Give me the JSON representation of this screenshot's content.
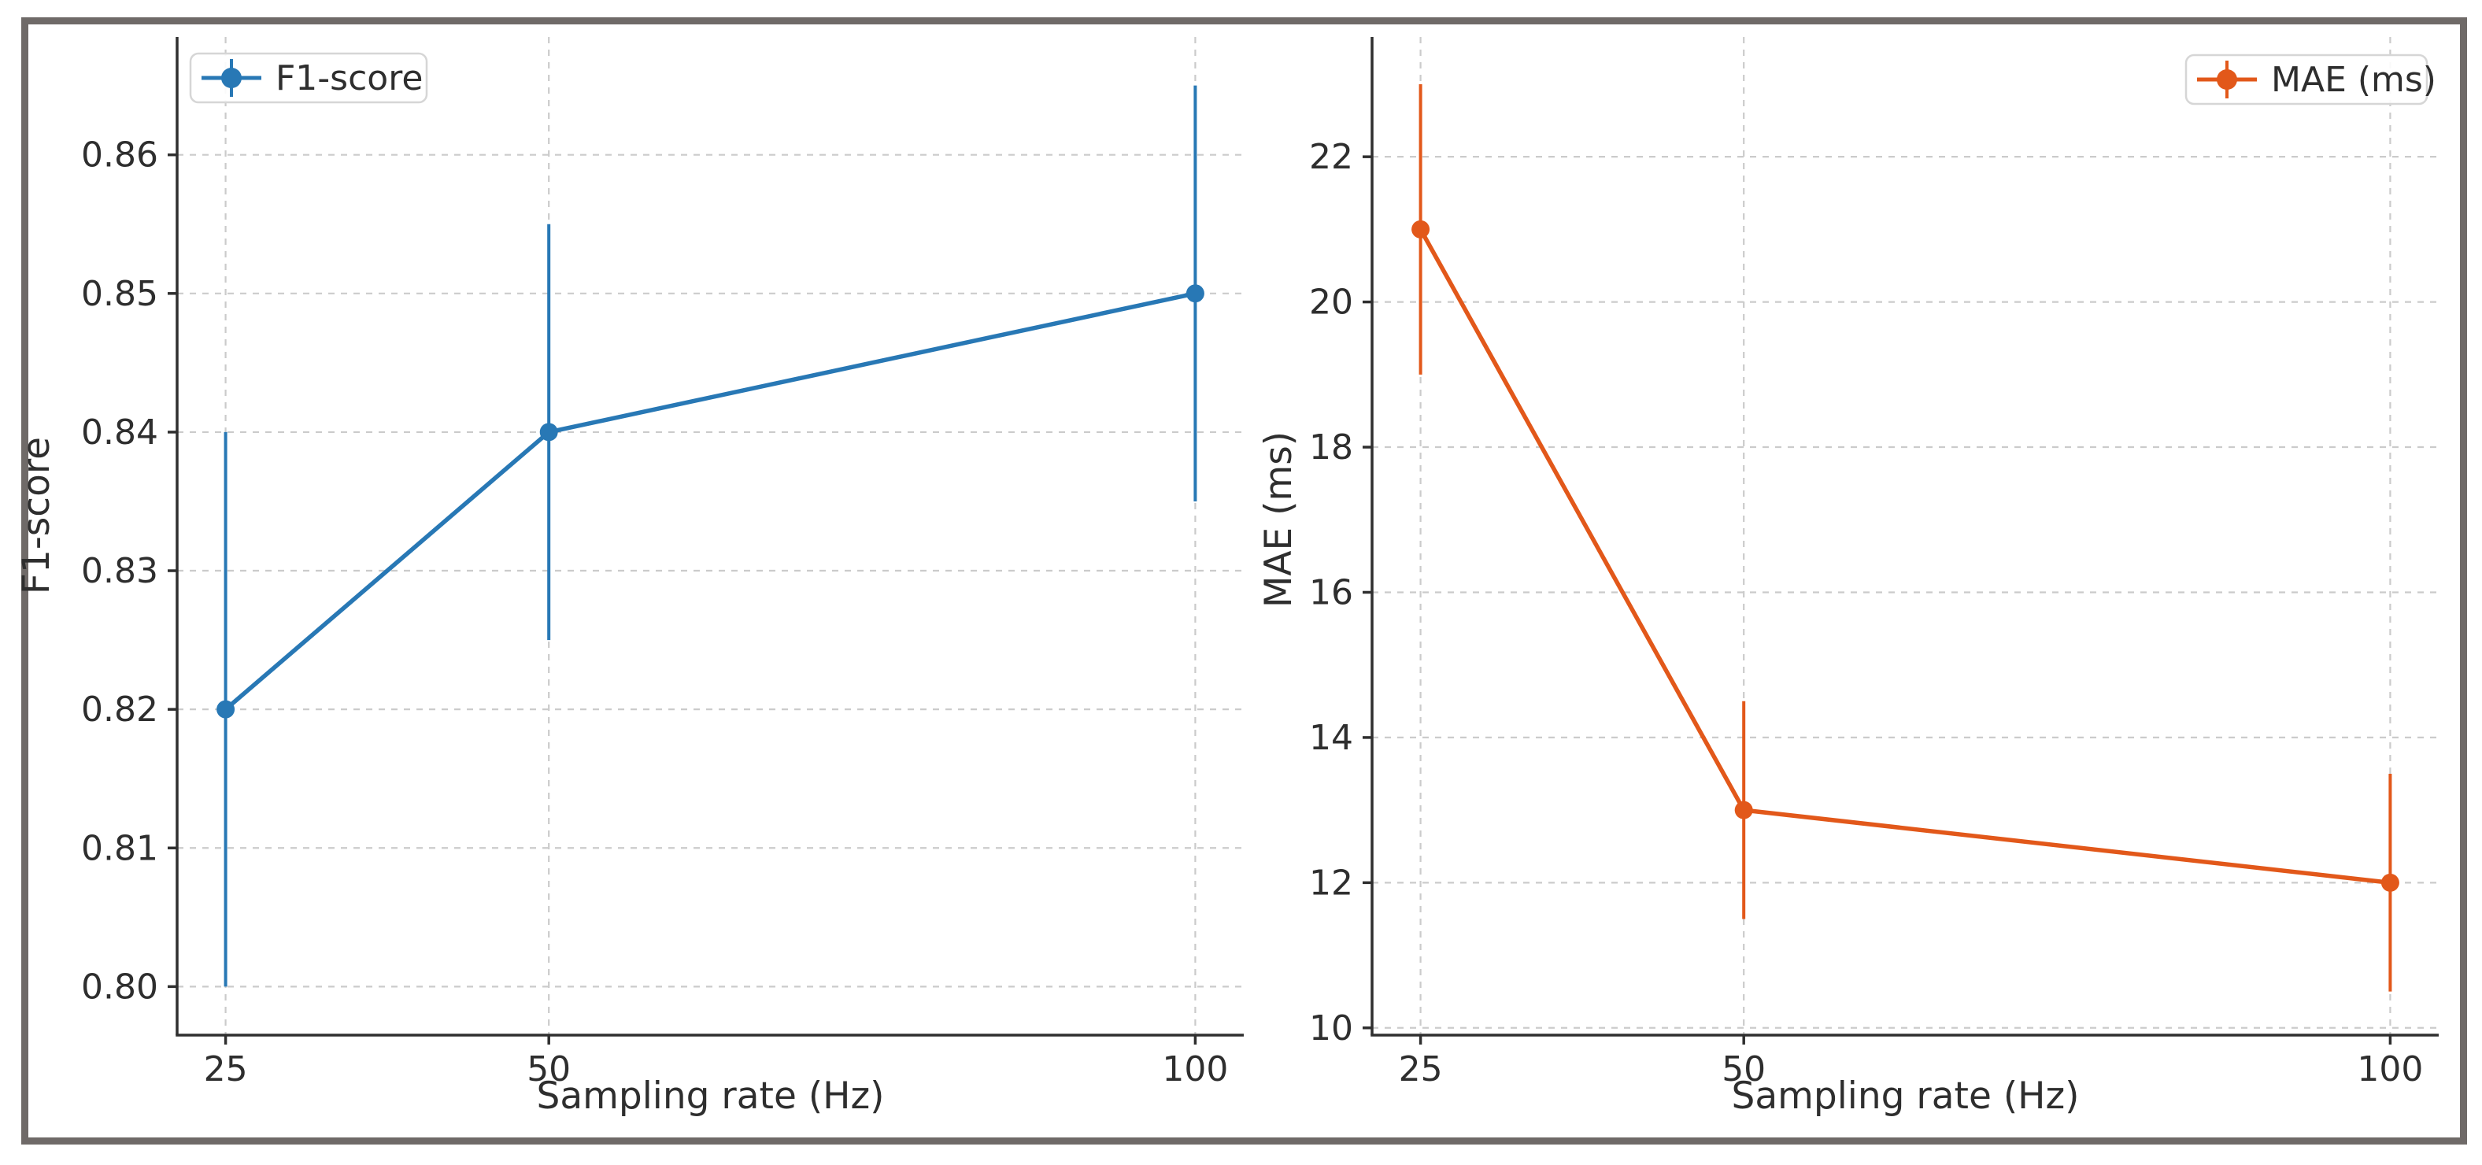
{
  "figure": {
    "background": "#ffffff",
    "frame_color": "#6f6a68"
  },
  "styles": {
    "text_color": "#2e2e2e",
    "grid_color": "#cbcbcb",
    "spine_color": "#2f2f2f",
    "legend_border_color": "#d6d6d6",
    "legend_fill": "#ffffff",
    "blue": "#2878b5",
    "orange": "#e2581a"
  },
  "chart_data": [
    {
      "type": "line",
      "title": "",
      "xlabel": "Sampling rate (Hz)",
      "ylabel": "F1-score",
      "x": [
        25,
        50,
        100
      ],
      "series": [
        {
          "name": "F1-score",
          "values": [
            0.82,
            0.84,
            0.85
          ],
          "yerr": [
            0.02,
            0.015,
            0.015
          ],
          "color": "#2878b5"
        }
      ],
      "x_ticks": [
        "25",
        "50",
        "100"
      ],
      "x_tick_values": [
        25,
        50,
        100
      ],
      "y_ticks": [
        "0.80",
        "0.81",
        "0.82",
        "0.83",
        "0.84",
        "0.85",
        "0.86"
      ],
      "y_tick_values": [
        0.8,
        0.81,
        0.82,
        0.83,
        0.84,
        0.85,
        0.86
      ],
      "xlim": [
        21.25,
        103.75
      ],
      "ylim": [
        0.7965,
        0.8685
      ],
      "grid": true,
      "legend": {
        "label": "F1-score",
        "position": "upper left"
      }
    },
    {
      "type": "line",
      "title": "",
      "xlabel": "Sampling rate (Hz)",
      "ylabel": "MAE (ms)",
      "x": [
        25,
        50,
        100
      ],
      "series": [
        {
          "name": "MAE (ms)",
          "values": [
            21,
            13,
            12
          ],
          "yerr": [
            2,
            1.5,
            1.5
          ],
          "color": "#e2581a"
        }
      ],
      "x_ticks": [
        "25",
        "50",
        "100"
      ],
      "x_tick_values": [
        25,
        50,
        100
      ],
      "y_ticks": [
        "10",
        "12",
        "14",
        "16",
        "18",
        "20",
        "22"
      ],
      "y_tick_values": [
        10,
        12,
        14,
        16,
        18,
        20,
        22
      ],
      "xlim": [
        21.25,
        103.75
      ],
      "ylim": [
        9.9,
        23.65
      ],
      "grid": true,
      "legend": {
        "label": "MAE (ms)",
        "position": "upper right"
      }
    }
  ]
}
